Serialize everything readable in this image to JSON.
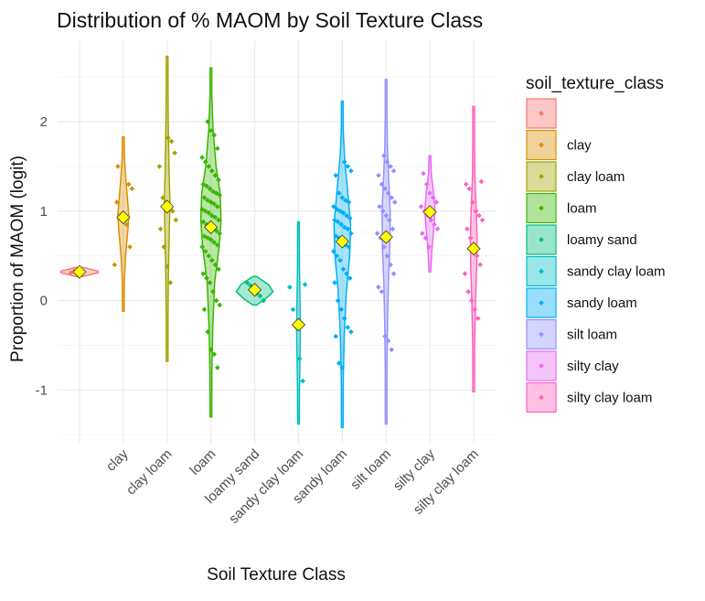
{
  "chart_data": {
    "type": "violin",
    "title": "Distribution of % MAOM by Soil Texture Class",
    "xlabel": "Soil Texture Class",
    "ylabel": "Proportion of MAOM (logit)",
    "ylim": [
      -1.6,
      2.9
    ],
    "y_ticks": [
      -1,
      0,
      1,
      2
    ],
    "y_tick_labels": [
      "-1",
      "0",
      "1",
      "2"
    ],
    "grid": true,
    "legend_position": "right",
    "legend_title": "soil_texture_class",
    "categories": [
      "",
      "clay",
      "clay loam",
      "loam",
      "loamy sand",
      "sandy clay loam",
      "sandy loam",
      "silt loam",
      "silty clay",
      "silty clay loam"
    ],
    "colors": [
      "#F8766D",
      "#D89000",
      "#A3A500",
      "#39B600",
      "#00BF7D",
      "#00BFC4",
      "#00B0F6",
      "#9590FF",
      "#E76BF3",
      "#FF62BC"
    ],
    "mean_marker_color": "#FFFF00",
    "series": [
      {
        "name": "",
        "ymin": 0.27,
        "ymax": 0.37,
        "mean": 0.32,
        "violin": [
          [
            0.27,
            0.2
          ],
          [
            0.29,
            0.6
          ],
          [
            0.31,
            1.0
          ],
          [
            0.33,
            1.0
          ],
          [
            0.35,
            0.6
          ],
          [
            0.37,
            0.2
          ]
        ],
        "points": [
          0.31,
          0.33
        ]
      },
      {
        "name": "clay",
        "ymin": -0.12,
        "ymax": 1.83,
        "mean": 0.93,
        "violin": [
          [
            -0.12,
            0.02
          ],
          [
            0.2,
            0.05
          ],
          [
            0.5,
            0.12
          ],
          [
            0.8,
            0.25
          ],
          [
            0.95,
            0.3
          ],
          [
            1.15,
            0.22
          ],
          [
            1.4,
            0.12
          ],
          [
            1.6,
            0.06
          ],
          [
            1.83,
            0.02
          ]
        ],
        "points": [
          1.3,
          1.25,
          1.1,
          0.95,
          0.9,
          0.85,
          0.6,
          0.4,
          1.5
        ]
      },
      {
        "name": "clay loam",
        "ymin": -0.68,
        "ymax": 2.73,
        "mean": 1.05,
        "violin": [
          [
            -0.68,
            0.02
          ],
          [
            -0.2,
            0.04
          ],
          [
            0.3,
            0.07
          ],
          [
            0.8,
            0.12
          ],
          [
            1.1,
            0.15
          ],
          [
            1.5,
            0.1
          ],
          [
            2.0,
            0.06
          ],
          [
            2.4,
            0.03
          ],
          [
            2.73,
            0.01
          ]
        ],
        "points": [
          1.82,
          1.78,
          1.65,
          1.5,
          1.15,
          1.1,
          1.05,
          1.0,
          0.9,
          0.8,
          0.6,
          0.38,
          0.2
        ]
      },
      {
        "name": "loam",
        "ymin": -1.3,
        "ymax": 2.6,
        "mean": 0.82,
        "violin": [
          [
            -1.3,
            0.02
          ],
          [
            -0.8,
            0.05
          ],
          [
            -0.3,
            0.1
          ],
          [
            0.2,
            0.2
          ],
          [
            0.6,
            0.45
          ],
          [
            0.9,
            0.55
          ],
          [
            1.2,
            0.5
          ],
          [
            1.5,
            0.28
          ],
          [
            1.9,
            0.12
          ],
          [
            2.3,
            0.04
          ],
          [
            2.6,
            0.01
          ]
        ],
        "points": [
          2.0,
          1.9,
          1.85,
          1.7,
          1.6,
          1.55,
          1.5,
          1.45,
          1.4,
          1.35,
          1.3,
          1.28,
          1.25,
          1.22,
          1.2,
          1.18,
          1.15,
          1.12,
          1.1,
          1.08,
          1.05,
          1.02,
          1.0,
          0.98,
          0.95,
          0.93,
          0.9,
          0.88,
          0.85,
          0.82,
          0.8,
          0.78,
          0.75,
          0.72,
          0.7,
          0.68,
          0.65,
          0.62,
          0.6,
          0.55,
          0.5,
          0.45,
          0.4,
          0.35,
          0.3,
          0.25,
          0.2,
          0.1,
          0.0,
          -0.05,
          -0.1,
          -0.35,
          -0.55,
          -0.6,
          -0.75
        ]
      },
      {
        "name": "loamy sand",
        "ymin": -0.05,
        "ymax": 0.27,
        "mean": 0.12,
        "violin": [
          [
            -0.05,
            0.1
          ],
          [
            0.02,
            0.6
          ],
          [
            0.1,
            1.0
          ],
          [
            0.18,
            0.75
          ],
          [
            0.27,
            0.1
          ]
        ],
        "points": [
          0.2,
          0.17,
          0.12,
          0.08,
          0.05,
          0.0
        ]
      },
      {
        "name": "sandy clay loam",
        "ymin": -1.38,
        "ymax": 0.88,
        "mean": -0.27,
        "violin": [
          [
            -1.38,
            0.02
          ],
          [
            -1.0,
            0.05
          ],
          [
            -0.6,
            0.08
          ],
          [
            -0.3,
            0.1
          ],
          [
            0.0,
            0.08
          ],
          [
            0.4,
            0.05
          ],
          [
            0.88,
            0.01
          ]
        ],
        "points": [
          0.18,
          0.15,
          -0.1,
          -0.3,
          -0.65,
          -0.9
        ]
      },
      {
        "name": "sandy loam",
        "ymin": -1.42,
        "ymax": 2.23,
        "mean": 0.66,
        "violin": [
          [
            -1.42,
            0.02
          ],
          [
            -0.9,
            0.05
          ],
          [
            -0.4,
            0.1
          ],
          [
            0.1,
            0.22
          ],
          [
            0.5,
            0.4
          ],
          [
            0.85,
            0.45
          ],
          [
            1.2,
            0.3
          ],
          [
            1.6,
            0.12
          ],
          [
            1.9,
            0.05
          ],
          [
            2.23,
            0.01
          ]
        ],
        "points": [
          1.55,
          1.5,
          1.45,
          1.4,
          1.2,
          1.15,
          1.12,
          1.1,
          1.05,
          1.02,
          1.0,
          0.98,
          0.95,
          0.92,
          0.9,
          0.88,
          0.85,
          0.82,
          0.8,
          0.75,
          0.72,
          0.7,
          0.65,
          0.62,
          0.6,
          0.55,
          0.5,
          0.45,
          0.35,
          0.3,
          0.25,
          0.2,
          0.0,
          -0.1,
          -0.2,
          -0.3,
          -0.35,
          -0.4,
          -0.7,
          -0.75
        ]
      },
      {
        "name": "silt loam",
        "ymin": -1.38,
        "ymax": 2.47,
        "mean": 0.71,
        "violin": [
          [
            -1.38,
            0.02
          ],
          [
            -0.8,
            0.04
          ],
          [
            -0.3,
            0.07
          ],
          [
            0.2,
            0.12
          ],
          [
            0.6,
            0.2
          ],
          [
            1.0,
            0.22
          ],
          [
            1.3,
            0.15
          ],
          [
            1.7,
            0.07
          ],
          [
            2.1,
            0.03
          ],
          [
            2.47,
            0.01
          ]
        ],
        "points": [
          1.62,
          1.55,
          1.5,
          1.45,
          1.4,
          1.3,
          1.25,
          1.2,
          1.15,
          1.1,
          1.05,
          1.0,
          0.95,
          0.9,
          0.8,
          0.75,
          0.7,
          0.6,
          0.5,
          0.4,
          0.3,
          0.15,
          0.1,
          -0.4,
          -0.45,
          -0.55
        ]
      },
      {
        "name": "silty clay",
        "ymin": 0.32,
        "ymax": 1.62,
        "mean": 0.99,
        "violin": [
          [
            0.32,
            0.02
          ],
          [
            0.55,
            0.1
          ],
          [
            0.8,
            0.2
          ],
          [
            1.0,
            0.28
          ],
          [
            1.2,
            0.2
          ],
          [
            1.4,
            0.08
          ],
          [
            1.62,
            0.02
          ]
        ],
        "points": [
          1.42,
          1.3,
          1.2,
          1.15,
          1.1,
          1.05,
          1.0,
          0.95,
          0.9,
          0.85,
          0.8,
          0.75,
          0.7,
          0.6
        ]
      },
      {
        "name": "silty clay loam",
        "ymin": -1.02,
        "ymax": 2.17,
        "mean": 0.58,
        "violin": [
          [
            -1.02,
            0.02
          ],
          [
            -0.5,
            0.05
          ],
          [
            0.0,
            0.1
          ],
          [
            0.4,
            0.16
          ],
          [
            0.7,
            0.18
          ],
          [
            1.0,
            0.14
          ],
          [
            1.4,
            0.06
          ],
          [
            1.8,
            0.03
          ],
          [
            2.17,
            0.01
          ]
        ],
        "points": [
          1.33,
          1.3,
          1.25,
          1.1,
          1.0,
          0.95,
          0.9,
          0.8,
          0.7,
          0.6,
          0.5,
          0.4,
          0.3,
          0.1,
          0.0,
          -0.1,
          -0.2
        ]
      }
    ]
  }
}
